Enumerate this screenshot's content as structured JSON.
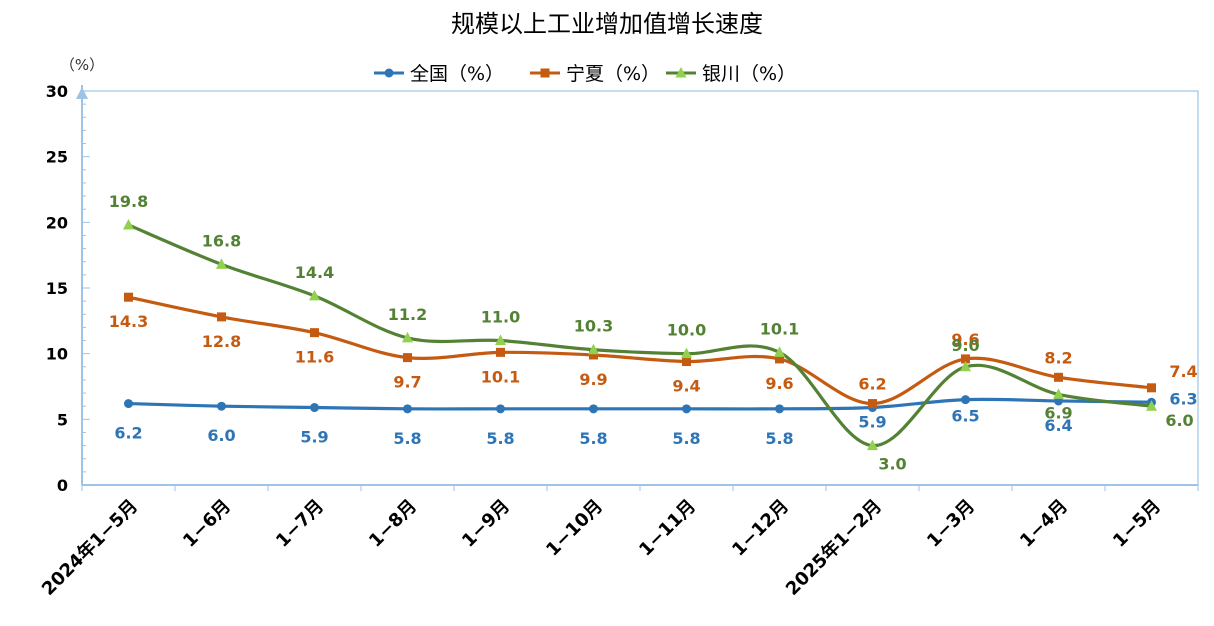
{
  "chart_data": {
    "type": "line",
    "title": "规模以上工业增加值增长速度",
    "ylabel": "（%）",
    "ylim": [
      0,
      30
    ],
    "yticks": [
      "0",
      "5",
      "10",
      "15",
      "20",
      "25",
      "30"
    ],
    "categories": [
      "2024年1−5月",
      "1−6月",
      "1−7月",
      "1−8月",
      "1−9月",
      "1−10月",
      "1−11月",
      "1−12月",
      "2025年1−2月",
      "1−3月",
      "1−4月",
      "1−5月"
    ],
    "legend_position": "top-center",
    "grid": false,
    "series": [
      {
        "name": "全国（%）",
        "color": "#2E75B6",
        "marker": "circle",
        "values": [
          6.2,
          6.0,
          5.9,
          5.8,
          5.8,
          5.8,
          5.8,
          5.8,
          5.9,
          6.5,
          6.4,
          6.3
        ],
        "labels": [
          "6.2",
          "6.0",
          "5.9",
          "5.8",
          "5.8",
          "5.8",
          "5.8",
          "5.8",
          "5.9",
          "6.5",
          "6.4",
          "6.3"
        ]
      },
      {
        "name": "宁夏（%）",
        "color": "#C55A11",
        "marker": "square",
        "values": [
          14.3,
          12.8,
          11.6,
          9.7,
          10.1,
          9.9,
          9.4,
          9.6,
          6.2,
          9.6,
          8.2,
          7.4
        ],
        "labels": [
          "14.3",
          "12.8",
          "11.6",
          "9.7",
          "10.1",
          "9.9",
          "9.4",
          "9.6",
          "6.2",
          "9.6",
          "8.2",
          "7.4"
        ]
      },
      {
        "name": "银川（%）",
        "color": "#548235",
        "marker": "triangle",
        "marker_color": "#92D050",
        "values": [
          19.8,
          16.8,
          14.4,
          11.2,
          11.0,
          10.3,
          10.0,
          10.1,
          3.0,
          9.0,
          6.9,
          6.0
        ],
        "labels": [
          "19.8",
          "16.8",
          "14.4",
          "11.2",
          "11.0",
          "10.3",
          "10.0",
          "10.1",
          "3.0",
          "9.0",
          "6.9",
          "6.0"
        ]
      }
    ]
  },
  "colors": {
    "axis": "#9DC3E6",
    "plot_border": "#9DC3E6"
  }
}
